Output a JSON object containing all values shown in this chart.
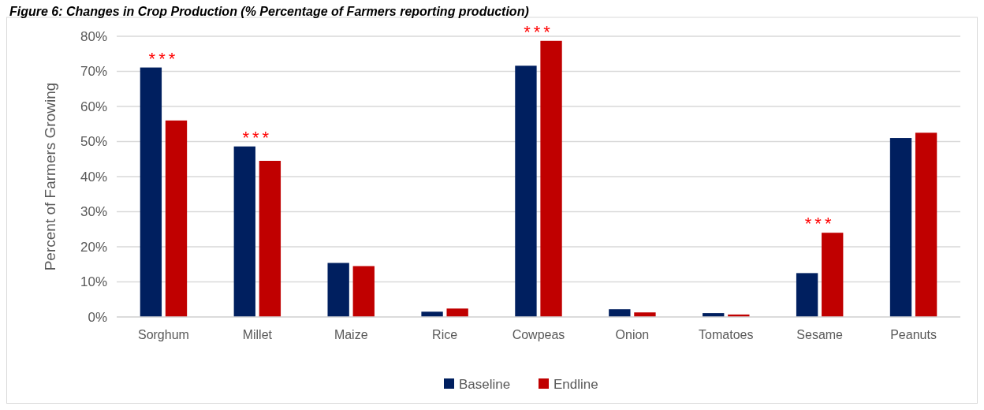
{
  "chart_data": {
    "type": "bar",
    "title": "Figure 6: Changes in Crop Production (% Percentage of Farmers reporting production)",
    "ylabel": "Percent of Farmers Growing",
    "categories": [
      "Sorghum",
      "Millet",
      "Maize",
      "Rice",
      "Cowpeas",
      "Onion",
      "Tomatoes",
      "Sesame",
      "Peanuts"
    ],
    "series": [
      {
        "name": "Baseline",
        "color": "#001f5f",
        "values": [
          71.1,
          48.6,
          15.4,
          1.5,
          71.6,
          2.2,
          1.1,
          12.5,
          51.0
        ]
      },
      {
        "name": "Endline",
        "color": "#c00000",
        "values": [
          56.0,
          44.5,
          14.5,
          2.4,
          78.7,
          1.3,
          0.7,
          24.0,
          52.5
        ]
      }
    ],
    "ylim": [
      0,
      80
    ],
    "yticks": [
      {
        "value": 0,
        "label": "0%"
      },
      {
        "value": 10,
        "label": "10%"
      },
      {
        "value": 20,
        "label": "20%"
      },
      {
        "value": 30,
        "label": "30%"
      },
      {
        "value": 40,
        "label": "40%"
      },
      {
        "value": 50,
        "label": "50%"
      },
      {
        "value": 60,
        "label": "60%"
      },
      {
        "value": 70,
        "label": "70%"
      },
      {
        "value": 80,
        "label": "80%"
      }
    ],
    "annotations": [
      {
        "text": "***",
        "x": "Sorghum",
        "y": 71.1
      },
      {
        "text": "***",
        "x": "Millet",
        "y": 48.6
      },
      {
        "text": "***",
        "x": "Cowpeas",
        "y": 78.7
      },
      {
        "text": "***",
        "x": "Sesame",
        "y": 24.0
      }
    ],
    "grid": "y",
    "legend": "bottom"
  }
}
